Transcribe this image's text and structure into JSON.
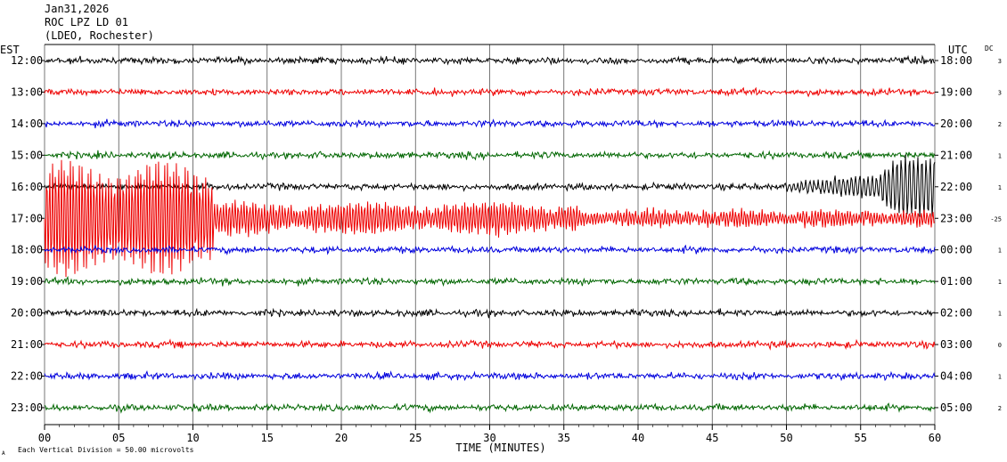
{
  "header": {
    "date": "Jan31,2026",
    "station": "ROC LPZ LD 01",
    "network": "(LDEO, Rochester)"
  },
  "labels": {
    "left_tz": "EST",
    "right_tz": "UTC",
    "dc": "DC",
    "xlabel": "TIME (MINUTES)",
    "footer": "Each Vertical Division =   50.00 microvolts",
    "footer_mark": "A"
  },
  "chart_data": {
    "type": "line",
    "title": "ROC LPZ LD 01",
    "xlabel": "TIME (MINUTES)",
    "xlim": [
      0,
      60
    ],
    "x_ticks": [
      "00",
      "05",
      "10",
      "15",
      "20",
      "25",
      "30",
      "35",
      "40",
      "45",
      "50",
      "55",
      "60"
    ],
    "grid": true,
    "colors": [
      "#000000",
      "#ee0000",
      "#0000dd",
      "#006600"
    ],
    "traces": [
      {
        "est": "12:00",
        "utc": "18:00",
        "dc": "3"
      },
      {
        "est": "13:00",
        "utc": "19:00",
        "dc": "3"
      },
      {
        "est": "14:00",
        "utc": "20:00",
        "dc": "2"
      },
      {
        "est": "15:00",
        "utc": "21:00",
        "dc": "1"
      },
      {
        "est": "16:00",
        "utc": "22:00",
        "dc": "1"
      },
      {
        "est": "17:00",
        "utc": "23:00",
        "dc": "-25"
      },
      {
        "est": "18:00",
        "utc": "00:00",
        "dc": "1"
      },
      {
        "est": "19:00",
        "utc": "01:00",
        "dc": "1"
      },
      {
        "est": "20:00",
        "utc": "02:00",
        "dc": "1"
      },
      {
        "est": "21:00",
        "utc": "03:00",
        "dc": "0"
      },
      {
        "est": "22:00",
        "utc": "04:00",
        "dc": "1"
      },
      {
        "est": "23:00",
        "utc": "05:00",
        "dc": "2"
      }
    ],
    "events": [
      {
        "trace": 4,
        "description": "earthquake onset",
        "start_min": 50,
        "end_min": 60
      },
      {
        "trace": 5,
        "description": "surface waves",
        "start_min": 0,
        "end_min": 60
      }
    ]
  }
}
